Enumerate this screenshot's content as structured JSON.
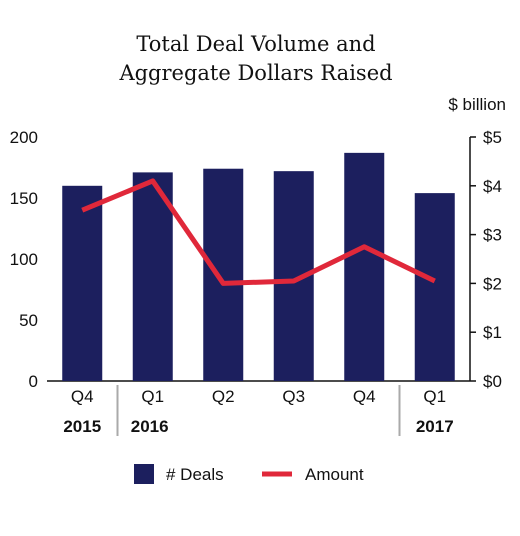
{
  "chart_data": {
    "type": "bar",
    "title_lines": [
      "Total Deal Volume and",
      "Aggregate Dollars Raised"
    ],
    "categories": [
      "Q4",
      "Q1",
      "Q2",
      "Q3",
      "Q4",
      "Q1"
    ],
    "year_groups": [
      {
        "label": "2015",
        "start": 0,
        "end": 0
      },
      {
        "label": "2016",
        "start": 1,
        "end": 4
      },
      {
        "label": "2017",
        "start": 5,
        "end": 5
      }
    ],
    "left_axis": {
      "ylim": [
        0,
        200
      ],
      "ticks": [
        0,
        50,
        100,
        150,
        200
      ],
      "tick_labels": [
        "0",
        "50",
        "100",
        "150",
        "200"
      ]
    },
    "right_axis": {
      "unit_label": "$ billion",
      "ylim": [
        0,
        5
      ],
      "ticks": [
        0,
        1,
        2,
        3,
        4,
        5
      ],
      "tick_labels": [
        "$0",
        "$1",
        "$2",
        "$3",
        "$4",
        "$5"
      ]
    },
    "series": [
      {
        "name": "# Deals",
        "type": "bar",
        "axis": "left",
        "color": "#1c1f5e",
        "values": [
          160,
          171,
          174,
          172,
          187,
          154
        ]
      },
      {
        "name": "Amount",
        "type": "line",
        "axis": "right",
        "color": "#e0283a",
        "values": [
          3.5,
          4.1,
          2.0,
          2.05,
          2.75,
          2.05
        ]
      }
    ],
    "legend_position": "bottom",
    "grid": false
  }
}
